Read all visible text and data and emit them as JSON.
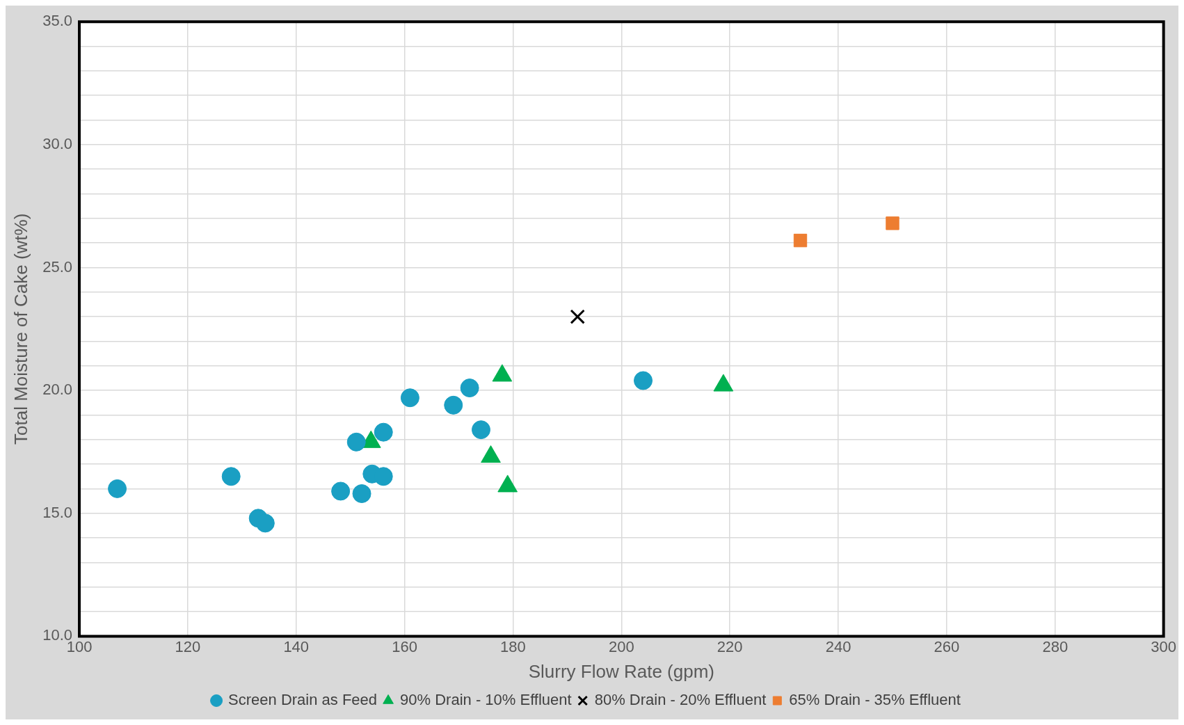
{
  "chart_data": {
    "type": "scatter",
    "xlabel": "Slurry Flow Rate (gpm)",
    "ylabel": "Total Moisture of Cake (wt%)",
    "xlim": [
      100,
      300
    ],
    "xticks": [
      100,
      120,
      140,
      160,
      180,
      200,
      220,
      240,
      260,
      280,
      300
    ],
    "ylim": [
      10,
      35
    ],
    "yticks": [
      {
        "value": 10,
        "label": "10.0"
      },
      {
        "value": 11,
        "label": null
      },
      {
        "value": 12,
        "label": null
      },
      {
        "value": 13,
        "label": null
      },
      {
        "value": 14,
        "label": null
      },
      {
        "value": 15,
        "label": "15.0"
      },
      {
        "value": 16,
        "label": null
      },
      {
        "value": 17,
        "label": null
      },
      {
        "value": 18,
        "label": null
      },
      {
        "value": 19,
        "label": null
      },
      {
        "value": 20,
        "label": "20.0"
      },
      {
        "value": 21,
        "label": null
      },
      {
        "value": 22,
        "label": null
      },
      {
        "value": 23,
        "label": null
      },
      {
        "value": 24,
        "label": null
      },
      {
        "value": 25,
        "label": "25.0"
      },
      {
        "value": 26,
        "label": null
      },
      {
        "value": 27,
        "label": null
      },
      {
        "value": 28,
        "label": null
      },
      {
        "value": 29,
        "label": null
      },
      {
        "value": 30,
        "label": "30.0"
      },
      {
        "value": 31,
        "label": null
      },
      {
        "value": 32,
        "label": null
      },
      {
        "value": 33,
        "label": null
      },
      {
        "value": 34,
        "label": null
      },
      {
        "value": 35,
        "label": "35.0"
      }
    ],
    "grid": true,
    "legend": "bottom",
    "series": [
      {
        "name": "Screen Drain as Feed",
        "color": "#1a9fc3",
        "marker": "circle",
        "x": [
          107,
          128,
          133,
          134.3,
          148.2,
          152.1,
          151.1,
          154,
          156.1,
          156.1,
          161,
          169,
          172,
          174.1,
          204
        ],
        "values": [
          16.0,
          16.5,
          14.8,
          14.6,
          15.9,
          15.8,
          17.9,
          16.6,
          16.5,
          18.3,
          19.7,
          19.4,
          20.1,
          18.4,
          20.4
        ]
      },
      {
        "name": "90% Drain - 10% Effluent",
        "color": "#00b050",
        "marker": "triangle",
        "x": [
          153.8,
          178,
          175.9,
          179,
          218.8
        ],
        "values": [
          17.9,
          20.6,
          17.3,
          16.1,
          20.2
        ]
      },
      {
        "name": "80% Drain - 20% Effluent",
        "color": "#000000",
        "marker": "cross",
        "x": [
          191.9
        ],
        "values": [
          23.0
        ]
      },
      {
        "name": "65% Drain - 35% Effluent",
        "color": "#ed7d31",
        "marker": "square",
        "x": [
          233,
          250
        ],
        "values": [
          26.1,
          26.8
        ]
      }
    ]
  }
}
